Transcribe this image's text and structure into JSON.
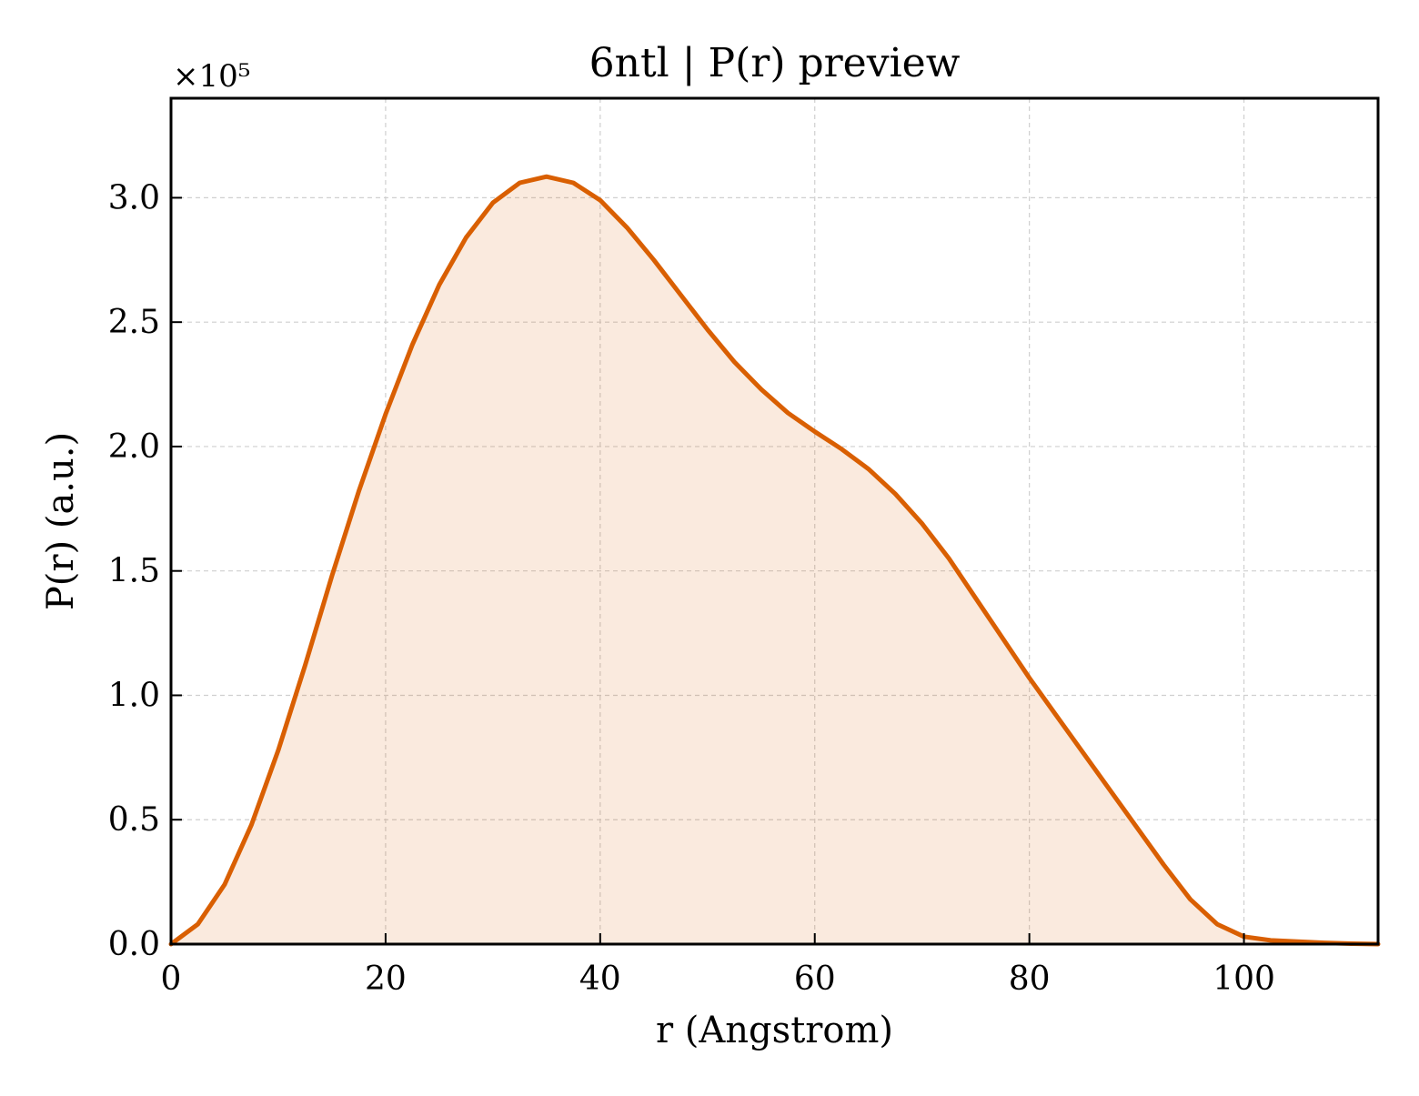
{
  "chart_data": {
    "type": "area",
    "title": "6ntl | P(r) preview",
    "xlabel": "r (Angstrom)",
    "ylabel": "P(r) (a.u.)",
    "y_multiplier": "×10⁵",
    "xlim": [
      0,
      112.5
    ],
    "ylim": [
      0,
      3.4
    ],
    "x_ticks": [
      0,
      20,
      40,
      60,
      80,
      100
    ],
    "x_tick_labels": [
      "0",
      "20",
      "40",
      "60",
      "80",
      "100"
    ],
    "y_ticks": [
      0,
      0.5,
      1.0,
      1.5,
      2.0,
      2.5,
      3.0
    ],
    "y_tick_labels": [
      "0.0",
      "0.5",
      "1.0",
      "1.5",
      "2.0",
      "2.5",
      "3.0"
    ],
    "grid": true,
    "color": "#d95f02",
    "fill_color": "#d95f02",
    "fill_opacity": 0.13,
    "series": [
      {
        "x": [
          0,
          2.5,
          5,
          7.5,
          10,
          12.5,
          15,
          17.5,
          20,
          22.5,
          25,
          27.5,
          30,
          32.5,
          35,
          37.5,
          40,
          42.5,
          45,
          47.5,
          50,
          52.5,
          55,
          57.5,
          60,
          62.5,
          65,
          67.5,
          70,
          72.5,
          75,
          77.5,
          80,
          82.5,
          85,
          87.5,
          90,
          92.5,
          95,
          97.5,
          100,
          102.5,
          105,
          107.5,
          110,
          112.5
        ],
        "y": [
          0.0,
          0.08,
          0.24,
          0.48,
          0.78,
          1.12,
          1.48,
          1.82,
          2.13,
          2.41,
          2.65,
          2.84,
          2.98,
          3.06,
          3.085,
          3.06,
          2.99,
          2.88,
          2.75,
          2.61,
          2.47,
          2.34,
          2.23,
          2.135,
          2.06,
          1.99,
          1.91,
          1.81,
          1.69,
          1.55,
          1.39,
          1.23,
          1.07,
          0.92,
          0.77,
          0.62,
          0.47,
          0.32,
          0.18,
          0.08,
          0.03,
          0.015,
          0.01,
          0.005,
          0.002,
          0.0
        ]
      }
    ]
  }
}
